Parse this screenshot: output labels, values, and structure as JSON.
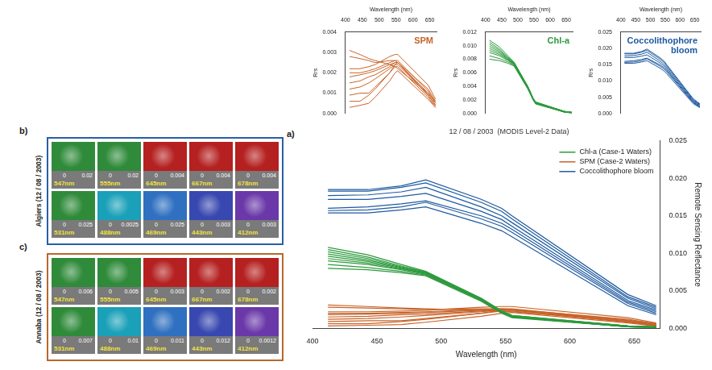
{
  "chart_data": [
    {
      "type": "line",
      "panel": "a)",
      "title": "12 / 08 / 2003  (MODIS Level-2 Data)",
      "x_label": "Wavelength (nm)",
      "y_label": "Remote Sensing Reflectance",
      "x": [
        412,
        443,
        469,
        488,
        531,
        547,
        555,
        645,
        667
      ],
      "xlim": [
        400,
        670
      ],
      "xticks": [
        400,
        450,
        500,
        550,
        600,
        650
      ],
      "ylim": [
        0,
        0.025
      ],
      "yticks": [
        {
          "value": 0,
          "label": "0.000"
        },
        0.005,
        {
          "value": 0.01,
          "label": "0.010"
        },
        0.015,
        {
          "value": 0.02,
          "label": "0.020"
        },
        0.025
      ],
      "grid": false,
      "legend": "upper right",
      "series": [
        {
          "name": "Chl-a (Case-1 Waters)",
          "color": "#2e9a3e",
          "values": [
            [
              0.0108,
              0.0098,
              0.0085,
              0.0076,
              0.004,
              0.0023,
              0.0017,
              0.0003,
              0.0002
            ],
            [
              0.0105,
              0.0095,
              0.0083,
              0.0075,
              0.004,
              0.0023,
              0.0017,
              0.0003,
              0.0002
            ],
            [
              0.0102,
              0.0093,
              0.0082,
              0.0075,
              0.0039,
              0.0022,
              0.0016,
              0.0003,
              0.0002
            ],
            [
              0.0099,
              0.0091,
              0.0081,
              0.0074,
              0.0039,
              0.0022,
              0.0016,
              0.0003,
              0.0001
            ],
            [
              0.0096,
              0.0089,
              0.008,
              0.0073,
              0.0038,
              0.0022,
              0.0016,
              0.0002,
              0.0001
            ],
            [
              0.0093,
              0.0087,
              0.0079,
              0.0073,
              0.0038,
              0.0021,
              0.0015,
              0.0002,
              0.0001
            ],
            [
              0.009,
              0.0085,
              0.0078,
              0.0072,
              0.0037,
              0.0021,
              0.0015,
              0.0002,
              0.0001
            ],
            [
              0.0085,
              0.0081,
              0.0076,
              0.0071,
              0.0037,
              0.0021,
              0.0015,
              0.0002,
              0.0001
            ],
            [
              0.008,
              0.0078,
              0.0074,
              0.007,
              0.0036,
              0.002,
              0.0014,
              0.0002,
              0.0001
            ]
          ]
        },
        {
          "name": "SPM (Case-2 Waters)",
          "color": "#c8642a",
          "values": [
            [
              0.0031,
              0.0029,
              0.0027,
              0.0026,
              0.0024,
              0.0023,
              0.0022,
              0.001,
              0.0006
            ],
            [
              0.0028,
              0.0027,
              0.0026,
              0.0025,
              0.0026,
              0.0026,
              0.0025,
              0.0012,
              0.0006
            ],
            [
              0.0022,
              0.0022,
              0.0023,
              0.0024,
              0.0028,
              0.0029,
              0.0029,
              0.0014,
              0.0007
            ],
            [
              0.002,
              0.002,
              0.0021,
              0.0022,
              0.0025,
              0.0026,
              0.0026,
              0.0011,
              0.0005
            ],
            [
              0.0018,
              0.0019,
              0.002,
              0.0021,
              0.0024,
              0.0025,
              0.0025,
              0.001,
              0.0005
            ],
            [
              0.0015,
              0.0016,
              0.0018,
              0.0019,
              0.0023,
              0.0025,
              0.0025,
              0.0009,
              0.0004
            ],
            [
              0.0012,
              0.0013,
              0.0015,
              0.0017,
              0.0022,
              0.0024,
              0.0024,
              0.0009,
              0.0004
            ],
            [
              0.0009,
              0.001,
              0.001,
              0.0013,
              0.002,
              0.0023,
              0.0023,
              0.0008,
              0.0003
            ],
            [
              0.0006,
              0.0006,
              0.0009,
              0.0012,
              0.002,
              0.0024,
              0.0025,
              0.0009,
              0.0004
            ],
            [
              0.0003,
              0.0004,
              0.0005,
              0.0008,
              0.0016,
              0.002,
              0.0021,
              0.0007,
              0.0003
            ]
          ]
        },
        {
          "name": "Coccolithophore bloom",
          "color": "#1f5aa0",
          "values": [
            [
              0.0185,
              0.0185,
              0.019,
              0.0198,
              0.0172,
              0.016,
              0.015,
              0.0045,
              0.003
            ],
            [
              0.0183,
              0.0183,
              0.0188,
              0.0194,
              0.0168,
              0.0156,
              0.0146,
              0.0042,
              0.0028
            ],
            [
              0.0177,
              0.0178,
              0.0182,
              0.0188,
              0.0162,
              0.015,
              0.0141,
              0.004,
              0.0026
            ],
            [
              0.0172,
              0.0172,
              0.0176,
              0.018,
              0.0156,
              0.0145,
              0.0136,
              0.0037,
              0.0024
            ],
            [
              0.016,
              0.0162,
              0.0166,
              0.017,
              0.015,
              0.014,
              0.0132,
              0.0035,
              0.0022
            ],
            [
              0.0157,
              0.0158,
              0.0162,
              0.0168,
              0.0146,
              0.0136,
              0.0128,
              0.0033,
              0.002
            ],
            [
              0.0154,
              0.0154,
              0.0158,
              0.0162,
              0.014,
              0.013,
              0.0122,
              0.003,
              0.0018
            ]
          ]
        }
      ]
    },
    {
      "type": "line",
      "title": "SPM",
      "x_label": "Wavelength (nm)",
      "y_label": "Rrs",
      "x": [
        412,
        443,
        469,
        488,
        531,
        547,
        555,
        645,
        667
      ],
      "xlim": [
        400,
        670
      ],
      "xticks": [
        400,
        450,
        500,
        550,
        600,
        650
      ],
      "ylim": [
        0,
        0.004
      ],
      "yticks": [
        {
          "value": 0,
          "label": "0.000"
        },
        0.001,
        0.002,
        0.003,
        0.004
      ],
      "grid": false,
      "series": [
        {
          "color": "#c8642a",
          "values": [
            [
              0.0031,
              0.0029,
              0.0027,
              0.0026,
              0.0024,
              0.0023,
              0.0022,
              0.001,
              0.0006
            ],
            [
              0.0028,
              0.0027,
              0.0026,
              0.0025,
              0.0026,
              0.0026,
              0.0025,
              0.0012,
              0.0006
            ],
            [
              0.0022,
              0.0022,
              0.0023,
              0.0024,
              0.0028,
              0.0029,
              0.0029,
              0.0014,
              0.0007
            ],
            [
              0.002,
              0.002,
              0.0021,
              0.0022,
              0.0025,
              0.0026,
              0.0026,
              0.0011,
              0.0005
            ],
            [
              0.0018,
              0.0019,
              0.002,
              0.0021,
              0.0024,
              0.0025,
              0.0025,
              0.001,
              0.0005
            ],
            [
              0.0015,
              0.0016,
              0.0018,
              0.0019,
              0.0023,
              0.0025,
              0.0025,
              0.0009,
              0.0004
            ],
            [
              0.0012,
              0.0013,
              0.0015,
              0.0017,
              0.0022,
              0.0024,
              0.0024,
              0.0009,
              0.0004
            ],
            [
              0.0009,
              0.001,
              0.001,
              0.0013,
              0.002,
              0.0023,
              0.0023,
              0.0008,
              0.0003
            ],
            [
              0.0006,
              0.0006,
              0.0009,
              0.0012,
              0.002,
              0.0024,
              0.0025,
              0.0009,
              0.0004
            ],
            [
              0.0003,
              0.0004,
              0.0005,
              0.0008,
              0.0016,
              0.002,
              0.0021,
              0.0007,
              0.0003
            ]
          ]
        }
      ]
    },
    {
      "type": "line",
      "title": "Chl-a",
      "x_label": "Wavelength (nm)",
      "y_label": "Rrs",
      "x": [
        412,
        443,
        469,
        488,
        531,
        547,
        555,
        645,
        667
      ],
      "xlim": [
        400,
        670
      ],
      "xticks": [
        400,
        450,
        500,
        550,
        600,
        650
      ],
      "ylim": [
        0,
        0.012
      ],
      "yticks": [
        {
          "value": 0,
          "label": "0.000"
        },
        0.002,
        0.004,
        0.006,
        0.008,
        {
          "value": 0.01,
          "label": "0.010"
        },
        0.012
      ],
      "grid": false,
      "series": [
        {
          "color": "#2e9a3e",
          "values": [
            [
              0.0108,
              0.0098,
              0.0085,
              0.0076,
              0.004,
              0.0023,
              0.0017,
              0.0003,
              0.0002
            ],
            [
              0.0105,
              0.0095,
              0.0083,
              0.0075,
              0.004,
              0.0023,
              0.0017,
              0.0003,
              0.0002
            ],
            [
              0.0102,
              0.0093,
              0.0082,
              0.0075,
              0.0039,
              0.0022,
              0.0016,
              0.0003,
              0.0002
            ],
            [
              0.0099,
              0.0091,
              0.0081,
              0.0074,
              0.0039,
              0.0022,
              0.0016,
              0.0003,
              0.0001
            ],
            [
              0.0096,
              0.0089,
              0.008,
              0.0073,
              0.0038,
              0.0022,
              0.0016,
              0.0002,
              0.0001
            ],
            [
              0.0093,
              0.0087,
              0.0079,
              0.0073,
              0.0038,
              0.0021,
              0.0015,
              0.0002,
              0.0001
            ],
            [
              0.009,
              0.0085,
              0.0078,
              0.0072,
              0.0037,
              0.0021,
              0.0015,
              0.0002,
              0.0001
            ],
            [
              0.0085,
              0.0081,
              0.0076,
              0.0071,
              0.0037,
              0.0021,
              0.0015,
              0.0002,
              0.0001
            ],
            [
              0.008,
              0.0078,
              0.0074,
              0.007,
              0.0036,
              0.002,
              0.0014,
              0.0002,
              0.0001
            ]
          ]
        }
      ]
    },
    {
      "type": "line",
      "title": "Coccolithophore bloom",
      "x_label": "Wavelength (nm)",
      "y_label": "Rrs",
      "x": [
        412,
        443,
        469,
        488,
        531,
        547,
        555,
        645,
        667
      ],
      "xlim": [
        400,
        670
      ],
      "xticks": [
        400,
        450,
        500,
        550,
        600,
        650
      ],
      "ylim": [
        0,
        0.025
      ],
      "yticks": [
        {
          "value": 0,
          "label": "0.000"
        },
        0.005,
        {
          "value": 0.01,
          "label": "0.010"
        },
        0.015,
        {
          "value": 0.02,
          "label": "0.020"
        },
        0.025
      ],
      "grid": false,
      "series": [
        {
          "color": "#1f5aa0",
          "values": [
            [
              0.0185,
              0.0185,
              0.019,
              0.0198,
              0.0172,
              0.016,
              0.015,
              0.0045,
              0.003
            ],
            [
              0.0183,
              0.0183,
              0.0188,
              0.0194,
              0.0168,
              0.0156,
              0.0146,
              0.0042,
              0.0028
            ],
            [
              0.0177,
              0.0178,
              0.0182,
              0.0188,
              0.0162,
              0.015,
              0.0141,
              0.004,
              0.0026
            ],
            [
              0.0172,
              0.0172,
              0.0176,
              0.018,
              0.0156,
              0.0145,
              0.0136,
              0.0037,
              0.0024
            ],
            [
              0.016,
              0.0162,
              0.0166,
              0.017,
              0.015,
              0.014,
              0.0132,
              0.0035,
              0.0022
            ],
            [
              0.0157,
              0.0158,
              0.0162,
              0.0168,
              0.0146,
              0.0136,
              0.0128,
              0.0033,
              0.002
            ],
            [
              0.0154,
              0.0154,
              0.0158,
              0.0162,
              0.014,
              0.013,
              0.0122,
              0.003,
              0.0018
            ]
          ]
        }
      ]
    }
  ],
  "image_panels": [
    {
      "panel": "b)",
      "label": "Algiers (12 / 08 / 2003)",
      "color": "#2a5ea8",
      "tiles": [
        {
          "band": "547nm",
          "scale": [
            0,
            0.02
          ]
        },
        {
          "band": "555nm",
          "scale": [
            0,
            0.02
          ]
        },
        {
          "band": "645nm",
          "scale": [
            0,
            0.004
          ]
        },
        {
          "band": "667nm",
          "scale": [
            0,
            0.004
          ]
        },
        {
          "band": "678nm",
          "scale": [
            0,
            0.004
          ]
        },
        {
          "band": "531nm",
          "scale": [
            0,
            0.025
          ]
        },
        {
          "band": "488nm",
          "scale": [
            0,
            0.0025
          ]
        },
        {
          "band": "469nm",
          "scale": [
            0,
            0.025
          ]
        },
        {
          "band": "443nm",
          "scale": [
            0,
            0.003
          ]
        },
        {
          "band": "412nm",
          "scale": [
            0,
            0.003
          ]
        }
      ]
    },
    {
      "panel": "c)",
      "label": "Annaba (12 / 08 / 2003)",
      "color": "#b8682a",
      "tiles": [
        {
          "band": "547nm",
          "scale": [
            0,
            0.006
          ]
        },
        {
          "band": "555nm",
          "scale": [
            0,
            0.005
          ]
        },
        {
          "band": "645nm",
          "scale": [
            0,
            0.003
          ]
        },
        {
          "band": "667nm",
          "scale": [
            0,
            0.002
          ]
        },
        {
          "band": "678nm",
          "scale": [
            0,
            0.002
          ]
        },
        {
          "band": "531nm",
          "scale": [
            0,
            0.007
          ]
        },
        {
          "band": "488nm",
          "scale": [
            0,
            0.01
          ]
        },
        {
          "band": "469nm",
          "scale": [
            0,
            0.011
          ]
        },
        {
          "band": "443nm",
          "scale": [
            0,
            0.012
          ]
        },
        {
          "band": "412nm",
          "scale": [
            0,
            0.0012
          ]
        }
      ]
    }
  ]
}
